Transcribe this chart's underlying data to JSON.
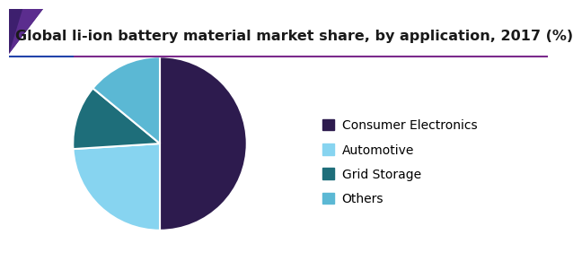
{
  "title": "Global li-ion battery material market share, by application, 2017 (%)",
  "labels": [
    "Consumer Electronics",
    "Automotive",
    "Grid Storage",
    "Others"
  ],
  "values": [
    50,
    24,
    12,
    14
  ],
  "colors": [
    "#2d1b4e",
    "#87d4f0",
    "#1e6e7a",
    "#5bb8d4"
  ],
  "startangle": 90,
  "legend_labels": [
    "Consumer Electronics",
    "Automotive",
    "Grid Storage",
    "Others"
  ],
  "title_fontsize": 11.5,
  "legend_fontsize": 10,
  "bg_color": "#ffffff",
  "title_color": "#1a1a1a",
  "header_line_color_left": "#3030a0",
  "header_line_color_right": "#8b2d8e",
  "corner_color1": "#5b2d8e",
  "corner_color2": "#2d1b5e"
}
